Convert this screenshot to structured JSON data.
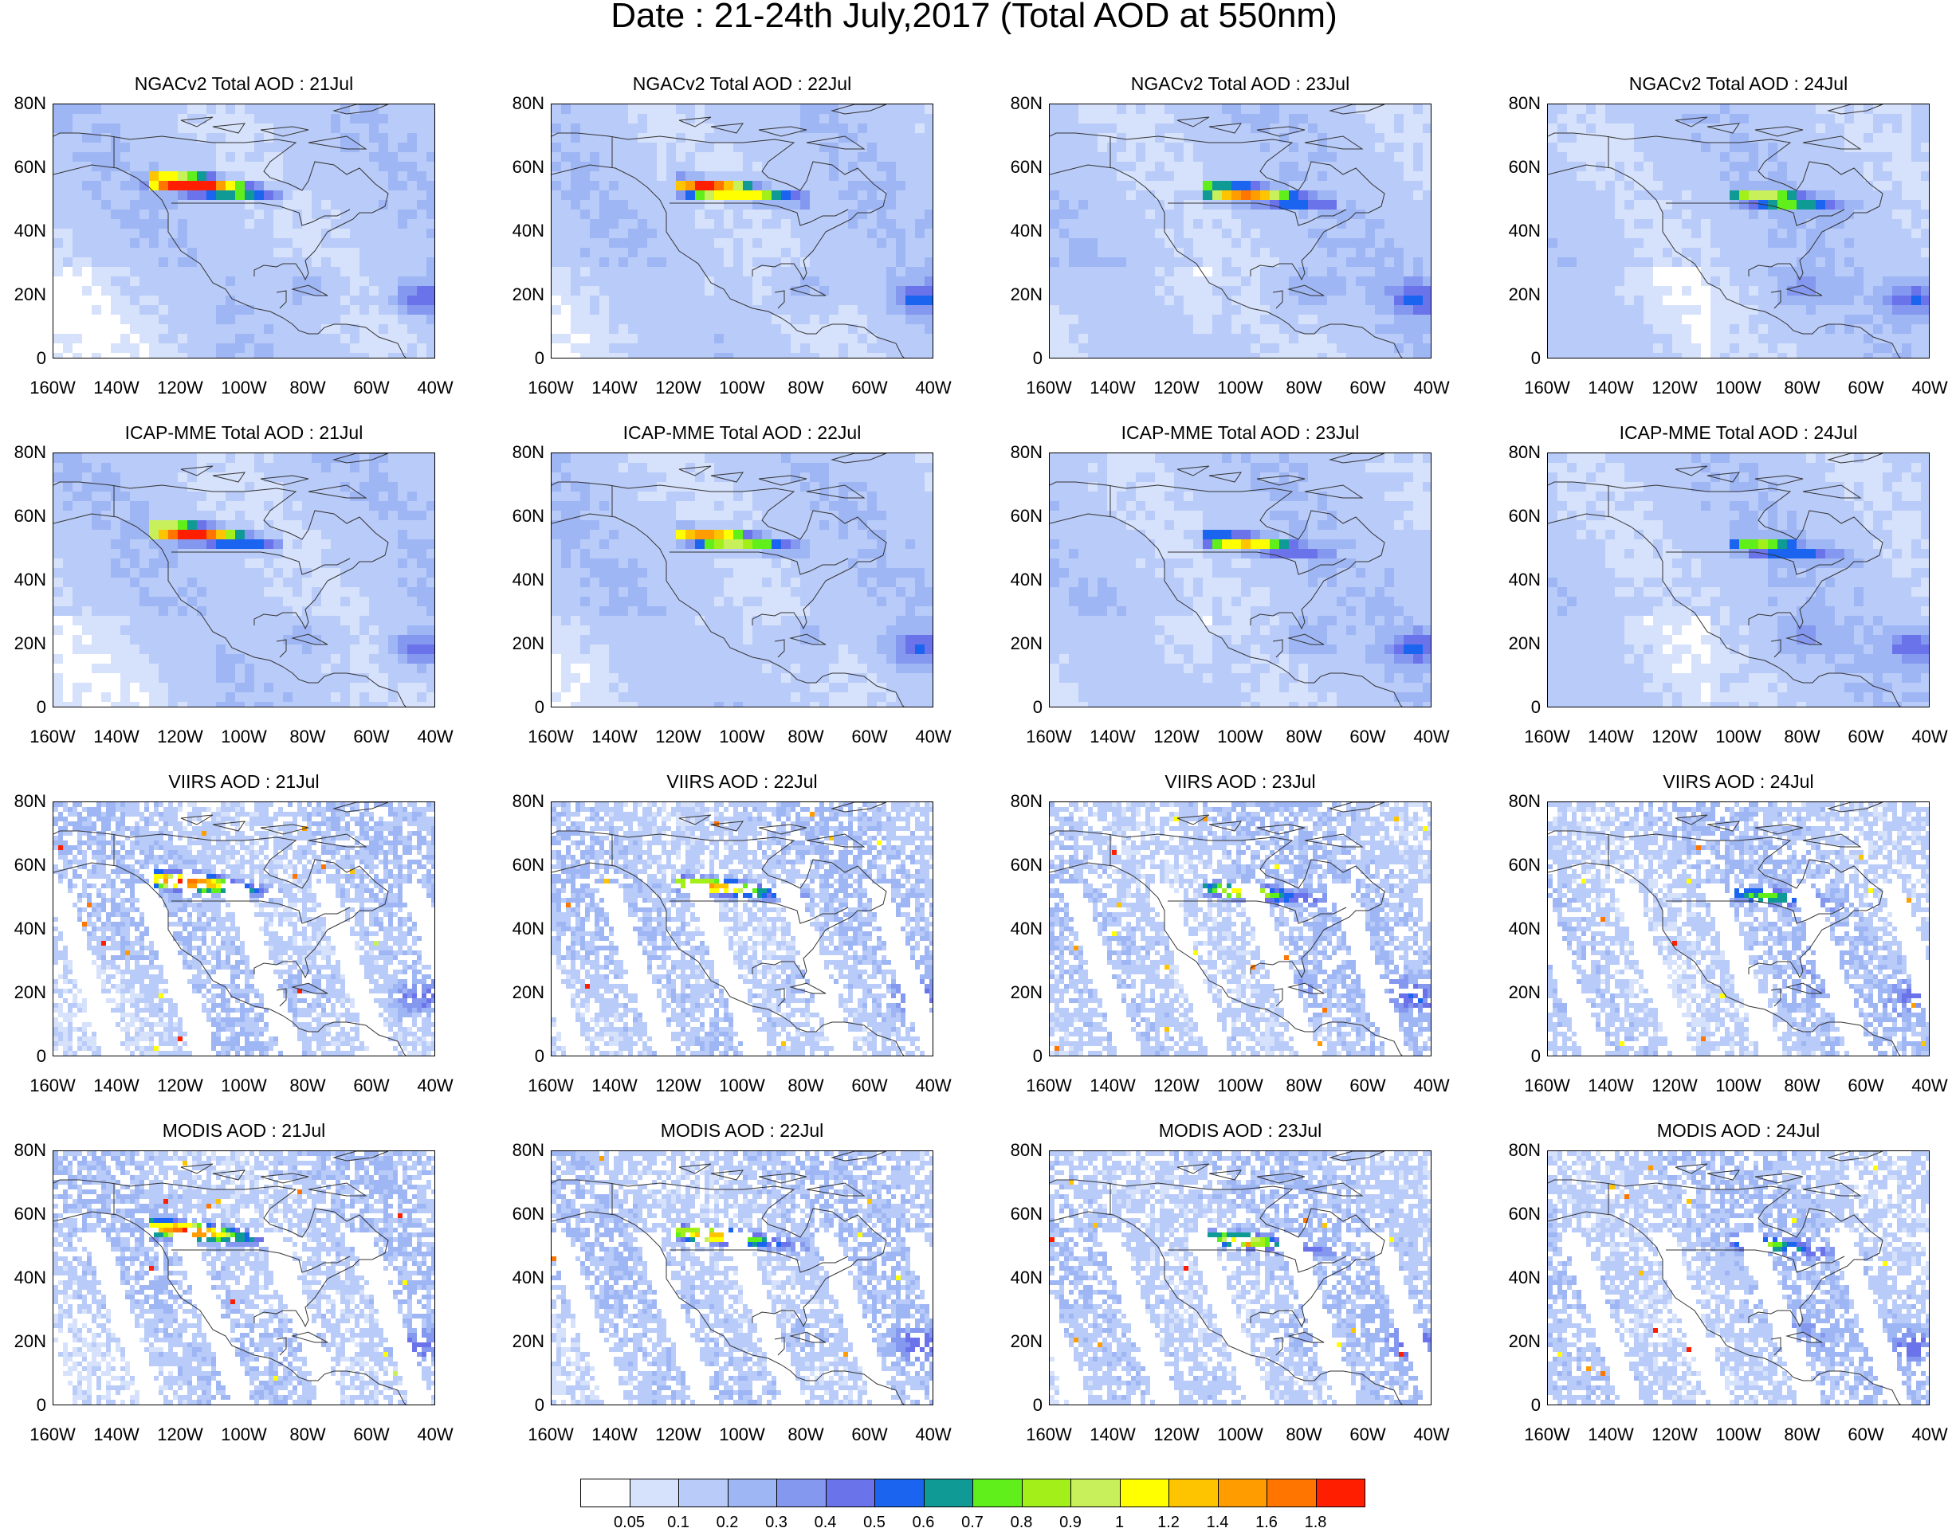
{
  "title": "Date : 21-24th July,2017 (Total AOD at 550nm)",
  "panels": [
    {
      "title": "NGACv2 Total AOD : 21Jul",
      "source": "NGACv2",
      "day": 21,
      "style": "model"
    },
    {
      "title": "NGACv2 Total AOD : 22Jul",
      "source": "NGACv2",
      "day": 22,
      "style": "model"
    },
    {
      "title": "NGACv2 Total AOD : 23Jul",
      "source": "NGACv2",
      "day": 23,
      "style": "model"
    },
    {
      "title": "NGACv2 Total AOD : 24Jul",
      "source": "NGACv2",
      "day": 24,
      "style": "model"
    },
    {
      "title": "ICAP-MME Total AOD : 21Jul",
      "source": "ICAP-MME",
      "day": 21,
      "style": "model"
    },
    {
      "title": "ICAP-MME Total AOD : 22Jul",
      "source": "ICAP-MME",
      "day": 22,
      "style": "model"
    },
    {
      "title": "ICAP-MME Total AOD : 23Jul",
      "source": "ICAP-MME",
      "day": 23,
      "style": "model"
    },
    {
      "title": "ICAP-MME Total AOD : 24Jul",
      "source": "ICAP-MME",
      "day": 24,
      "style": "model"
    },
    {
      "title": "VIIRS AOD : 21Jul",
      "source": "VIIRS",
      "day": 21,
      "style": "satellite"
    },
    {
      "title": "VIIRS AOD : 22Jul",
      "source": "VIIRS",
      "day": 22,
      "style": "satellite"
    },
    {
      "title": "VIIRS AOD : 23Jul",
      "source": "VIIRS",
      "day": 23,
      "style": "satellite"
    },
    {
      "title": "VIIRS AOD : 24Jul",
      "source": "VIIRS",
      "day": 24,
      "style": "satellite"
    },
    {
      "title": "MODIS AOD : 21Jul",
      "source": "MODIS",
      "day": 21,
      "style": "satellite"
    },
    {
      "title": "MODIS AOD : 22Jul",
      "source": "MODIS",
      "day": 22,
      "style": "satellite"
    },
    {
      "title": "MODIS AOD : 23Jul",
      "source": "MODIS",
      "day": 23,
      "style": "satellite"
    },
    {
      "title": "MODIS AOD : 24Jul",
      "source": "MODIS",
      "day": 24,
      "style": "satellite"
    }
  ],
  "axes": {
    "lat_labels": [
      "80N",
      "60N",
      "40N",
      "20N",
      "0"
    ],
    "lon_labels": [
      "160W",
      "140W",
      "120W",
      "100W",
      "80W",
      "60W",
      "40W"
    ],
    "lat_range": [
      0,
      80
    ],
    "lon_range": [
      -160,
      -40
    ]
  },
  "colorbar": {
    "labels": [
      "0.05",
      "0.1",
      "0.2",
      "0.3",
      "0.4",
      "0.5",
      "0.6",
      "0.7",
      "0.8",
      "0.9",
      "1",
      "1.2",
      "1.4",
      "1.6",
      "1.8"
    ],
    "colors": [
      "#ffffff",
      "#d6e1fb",
      "#b9cbf8",
      "#9fb6f5",
      "#8598f0",
      "#6b73eb",
      "#1a64f0",
      "#109a96",
      "#60ef1a",
      "#a2ef1a",
      "#c8f05a",
      "#ffff00",
      "#ffc400",
      "#ff9d00",
      "#ff7500",
      "#ff1e00"
    ]
  }
}
